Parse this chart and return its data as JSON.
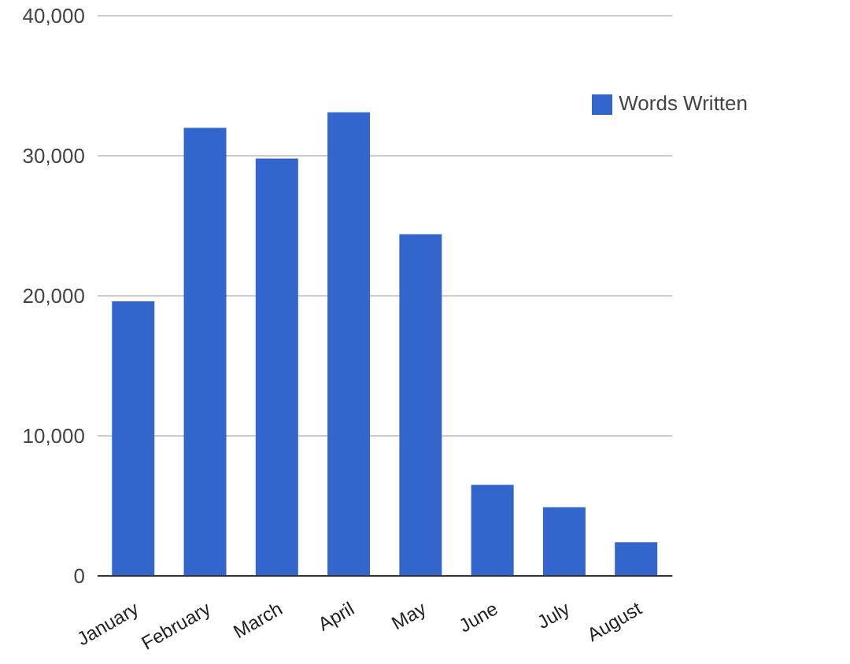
{
  "chart_data": {
    "type": "bar",
    "categories": [
      "January",
      "February",
      "March",
      "April",
      "May",
      "June",
      "July",
      "August"
    ],
    "series": [
      {
        "name": "Words Written",
        "color": "#3366cc",
        "values": [
          19600,
          32000,
          29800,
          33100,
          24400,
          6500,
          4900,
          2400
        ]
      }
    ],
    "ylim": [
      0,
      40000
    ],
    "yticks": [
      0,
      {
        "value": 10000,
        "label": "10,000"
      },
      {
        "value": 20000,
        "label": "20,000"
      },
      {
        "value": 30000,
        "label": "30,000"
      },
      {
        "value": 40000,
        "label": "40,000"
      }
    ],
    "grid": "y",
    "legend": "top right"
  }
}
